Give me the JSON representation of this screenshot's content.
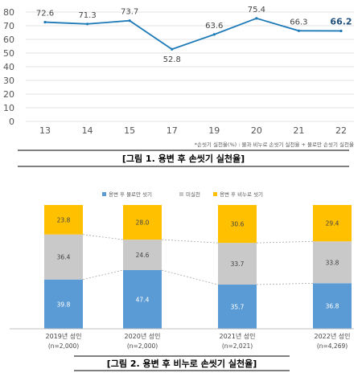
{
  "figure1": {
    "caption": "[그림 1. 용변 후 손씻기 실천율]",
    "footnote": "*손씻기 실천율(%) : 물과 비누로 손씻기 실천율 + 물로만 손씻기 실천율",
    "accent_color": "#1f7ab8",
    "highlight_color": "#1f4e79"
  },
  "figure2": {
    "caption": "[그림 2. 용변 후 비누로 손씻기 실천율]"
  },
  "chart_data": [
    {
      "type": "line",
      "categories": [
        "13",
        "14",
        "15",
        "17",
        "19",
        "20",
        "21",
        "22"
      ],
      "values": [
        72.6,
        71.3,
        73.7,
        52.8,
        63.6,
        75.4,
        66.3,
        66.2
      ],
      "ylim": [
        0,
        80
      ],
      "yticks": [
        0,
        10,
        20,
        30,
        40,
        50,
        60,
        70,
        80
      ],
      "grid": true,
      "highlight_last": true
    },
    {
      "type": "bar",
      "stacked": true,
      "normalized": true,
      "categories": [
        "2019년 성인",
        "2020년 성인",
        "2021년 성인",
        "2022년 성인"
      ],
      "subcategories": [
        "(n=2,000)",
        "(n=2,000)",
        "(n=2,021)",
        "(n=4,269)"
      ],
      "legend_position": "top",
      "series": [
        {
          "name": "용변 후 물로만 씻기",
          "color": "#5b9bd5",
          "values": [
            39.8,
            47.4,
            35.7,
            36.8
          ]
        },
        {
          "name": "미실천",
          "color": "#c9c9c9",
          "values": [
            36.4,
            24.6,
            33.7,
            33.8
          ]
        },
        {
          "name": "용변 후 비누로 씻기",
          "color": "#ffc000",
          "values": [
            23.8,
            28.0,
            30.6,
            29.4
          ]
        }
      ],
      "connector_lines": true
    }
  ]
}
